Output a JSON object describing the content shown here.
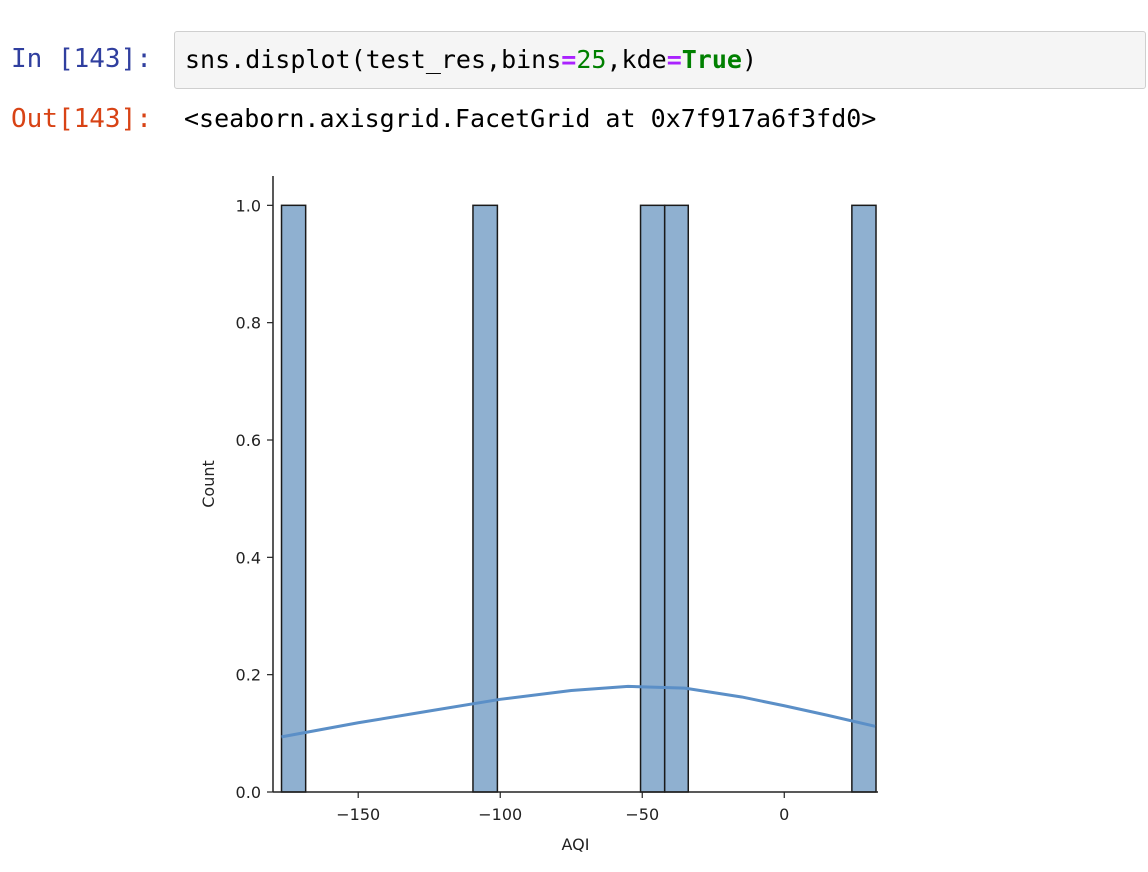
{
  "cell": {
    "in_prompt": "In [143]:",
    "out_prompt": "Out[143]:",
    "code": {
      "tokens": [
        {
          "text": "sns.displot(test_res,bins",
          "kind": "plain"
        },
        {
          "text": "=",
          "kind": "op"
        },
        {
          "text": "25",
          "kind": "num"
        },
        {
          "text": ",kde",
          "kind": "plain"
        },
        {
          "text": "=",
          "kind": "op"
        },
        {
          "text": "True",
          "kind": "kw"
        },
        {
          "text": ")",
          "kind": "plain"
        }
      ]
    },
    "output_text": "<seaborn.axisgrid.FacetGrid at 0x7f917a6f3fd0>"
  },
  "colors": {
    "in_prompt": "#303f9f",
    "out_prompt": "#d84315",
    "bar_fill": "#8fb0d0",
    "bar_edge": "#1a1a1a",
    "kde_line": "#5b8fc7"
  },
  "chart_data": {
    "type": "bar",
    "xlabel": "AQI",
    "ylabel": "Count",
    "xlim": [
      -180,
      33
    ],
    "ylim": [
      0,
      1.05
    ],
    "xticks": [
      -150,
      -100,
      -50,
      0
    ],
    "xtick_labels": [
      "−150",
      "−100",
      "−50",
      "0"
    ],
    "yticks": [
      0.0,
      0.2,
      0.4,
      0.6,
      0.8,
      1.0
    ],
    "ytick_labels": [
      "0.0",
      "0.2",
      "0.4",
      "0.6",
      "0.8",
      "1.0"
    ],
    "bins": 25,
    "bars": [
      {
        "x0": -177.0,
        "x1": -168.5,
        "count": 1
      },
      {
        "x0": -109.6,
        "x1": -101.0,
        "count": 1
      },
      {
        "x0": -50.6,
        "x1": -42.1,
        "count": 1
      },
      {
        "x0": -42.1,
        "x1": -33.8,
        "count": 1
      },
      {
        "x0": 23.8,
        "x1": 32.3,
        "count": 1
      }
    ],
    "kde": {
      "x": [
        -177,
        -150,
        -125,
        -100,
        -75,
        -55,
        -35,
        -15,
        0,
        15,
        32
      ],
      "y": [
        0.094,
        0.118,
        0.138,
        0.158,
        0.173,
        0.18,
        0.177,
        0.162,
        0.147,
        0.131,
        0.112
      ]
    }
  }
}
